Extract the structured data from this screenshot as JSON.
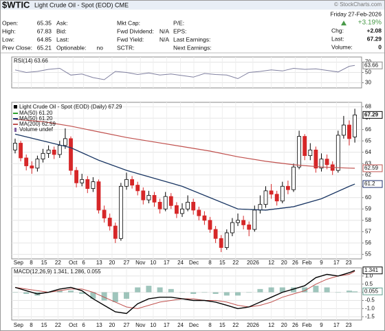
{
  "header": {
    "symbol": "$WTIC",
    "name": "Light Crude Oil - Spot (EOD) CME",
    "logo": "© StockCharts.com",
    "date": "Friday 27-Feb-2026",
    "change_pct": "+3.19%",
    "columns": [
      [
        {
          "label": "Open:",
          "value": 65.35
        },
        {
          "label": "High:",
          "value": 67.83
        },
        {
          "label": "Low:",
          "value": 64.85
        },
        {
          "label": "Prev Close:",
          "value": 65.21
        }
      ],
      [
        {
          "label": "Ask:"
        },
        {
          "label": "Bid:"
        },
        {
          "label": "Last:"
        },
        {
          "label": "Optionable:",
          "value": "no"
        }
      ],
      [
        {
          "label": "Mkt Cap:"
        },
        {
          "label": "Fwd Dividend:",
          "value": "N/A"
        },
        {
          "label": "Fwd Yield:",
          "value": "N/A"
        },
        {
          "label": "SCTR:"
        }
      ],
      [
        {
          "label": "P/E:"
        },
        {
          "label": "EPS:"
        },
        {
          "label": "Last Earnings:"
        },
        {
          "label": "Next Earnings:"
        }
      ]
    ],
    "right": [
      {
        "label": "Chg:",
        "value": "+2.08"
      },
      {
        "label": "Last:",
        "value": 67.29
      },
      {
        "label": "Volume:",
        "value": 0
      }
    ]
  },
  "chart_data": [
    {
      "type": "line",
      "title": "RSI(14) 63.66",
      "color": "#7f7f9f",
      "ylim": [
        20,
        80
      ],
      "yticks": [
        70,
        50,
        30
      ],
      "x": [
        0,
        2,
        4,
        6,
        8,
        10,
        12,
        14,
        16,
        18,
        20,
        22,
        24,
        26,
        28,
        30,
        32,
        34,
        36,
        38,
        40,
        42,
        44,
        46,
        48,
        50,
        52,
        54,
        56,
        58,
        60,
        61
      ],
      "values": [
        55,
        50,
        52,
        56,
        58,
        45,
        47,
        40,
        36,
        52,
        50,
        46,
        49,
        45,
        47,
        44,
        41,
        48,
        46,
        45,
        38,
        50,
        52,
        55,
        53,
        58,
        56,
        57,
        54,
        51,
        62,
        63.66
      ]
    },
    {
      "type": "candlestick",
      "title": "Light Crude Oil - Spot (EOD) (Daily) 67.29",
      "volume_label": "Volume undef",
      "last_value": 67.29,
      "ylim": [
        54.6,
        68.4
      ],
      "yticks": [
        55,
        56,
        57,
        58,
        59,
        60,
        61,
        62,
        63,
        64,
        65,
        66,
        67,
        68
      ],
      "xticks": [
        {
          "value": 0.6,
          "label": "Sep"
        },
        {
          "value": 2.9,
          "label": "8"
        },
        {
          "value": 5.2,
          "label": "15"
        },
        {
          "value": 7.7,
          "label": "22"
        },
        {
          "value": 10.4,
          "label": "Oct"
        },
        {
          "value": 12.3,
          "label": "6"
        },
        {
          "value": 15.1,
          "label": "13"
        },
        {
          "value": 17.4,
          "label": "20"
        },
        {
          "value": 20,
          "label": "27"
        },
        {
          "value": 22.5,
          "label": "Nov"
        },
        {
          "value": 24.8,
          "label": "10"
        },
        {
          "value": 27.2,
          "label": "17"
        },
        {
          "value": 29.7,
          "label": "24"
        },
        {
          "value": 32.1,
          "label": "Dec"
        },
        {
          "value": 35,
          "label": "8"
        },
        {
          "value": 37.2,
          "label": "15"
        },
        {
          "value": 39.6,
          "label": "22"
        },
        {
          "value": 42.7,
          "label": "2026"
        },
        {
          "value": 46,
          "label": "12"
        },
        {
          "value": 48.3,
          "label": "20"
        },
        {
          "value": 50.3,
          "label": "26"
        },
        {
          "value": 52.4,
          "label": "Feb"
        },
        {
          "value": 55,
          "label": "9"
        },
        {
          "value": 57.7,
          "label": "17"
        },
        {
          "value": 59.9,
          "label": "23"
        }
      ],
      "candles": [
        [
          64.2,
          65.2,
          63.9,
          64.8
        ],
        [
          64.8,
          65.0,
          63.2,
          63.5
        ],
        [
          63.5,
          63.8,
          62.4,
          62.8
        ],
        [
          62.8,
          63.2,
          62.1,
          62.6
        ],
        [
          62.6,
          63.7,
          62.3,
          63.4
        ],
        [
          63.4,
          64.3,
          63.1,
          63.9
        ],
        [
          63.9,
          64.6,
          63.5,
          64.2
        ],
        [
          64.2,
          64.5,
          63.4,
          63.8
        ],
        [
          63.8,
          65.0,
          63.5,
          64.6
        ],
        [
          64.6,
          66.1,
          64.3,
          65.2
        ],
        [
          65.2,
          65.4,
          62.0,
          62.4
        ],
        [
          62.4,
          62.7,
          60.9,
          61.3
        ],
        [
          61.3,
          62.1,
          61.0,
          61.6
        ],
        [
          61.6,
          61.9,
          60.4,
          60.8
        ],
        [
          60.8,
          61.8,
          60.5,
          61.4
        ],
        [
          61.4,
          61.6,
          58.6,
          58.9
        ],
        [
          58.9,
          59.3,
          57.8,
          58.2
        ],
        [
          58.2,
          58.6,
          57.1,
          57.5
        ],
        [
          57.5,
          57.8,
          56.0,
          56.4
        ],
        [
          56.4,
          61.3,
          56.2,
          61.0
        ],
        [
          61.0,
          62.2,
          60.7,
          61.6
        ],
        [
          61.6,
          61.9,
          60.8,
          61.1
        ],
        [
          61.1,
          61.4,
          60.2,
          60.6
        ],
        [
          60.6,
          60.9,
          59.4,
          59.8
        ],
        [
          59.8,
          60.6,
          59.5,
          60.2
        ],
        [
          60.2,
          60.5,
          59.2,
          59.6
        ],
        [
          59.6,
          59.9,
          58.6,
          59.0
        ],
        [
          59.0,
          60.5,
          58.8,
          60.1
        ],
        [
          60.1,
          60.4,
          59.0,
          59.3
        ],
        [
          59.3,
          59.6,
          58.2,
          58.6
        ],
        [
          58.6,
          59.5,
          58.3,
          59.0
        ],
        [
          59.0,
          60.2,
          58.8,
          59.6
        ],
        [
          59.6,
          59.9,
          58.5,
          58.9
        ],
        [
          58.9,
          59.2,
          58.0,
          58.4
        ],
        [
          58.4,
          58.8,
          57.6,
          58.0
        ],
        [
          58.0,
          58.3,
          56.9,
          57.2
        ],
        [
          57.2,
          57.5,
          56.0,
          56.4
        ],
        [
          56.4,
          56.7,
          55.2,
          55.6
        ],
        [
          55.6,
          57.2,
          55.4,
          56.9
        ],
        [
          56.9,
          58.2,
          56.6,
          57.8
        ],
        [
          57.8,
          58.6,
          57.5,
          58.0
        ],
        [
          58.0,
          58.4,
          57.2,
          57.6
        ],
        [
          57.6,
          57.9,
          56.6,
          57.2
        ],
        [
          57.2,
          59.3,
          57.0,
          58.9
        ],
        [
          58.9,
          60.2,
          58.6,
          59.4
        ],
        [
          59.4,
          61.0,
          59.1,
          60.6
        ],
        [
          60.6,
          61.2,
          59.9,
          60.3
        ],
        [
          60.3,
          60.6,
          59.3,
          59.7
        ],
        [
          59.7,
          61.4,
          59.5,
          61.0
        ],
        [
          61.0,
          61.5,
          60.3,
          60.7
        ],
        [
          60.7,
          63.0,
          60.5,
          62.7
        ],
        [
          62.7,
          65.9,
          62.5,
          65.4
        ],
        [
          65.4,
          65.6,
          63.3,
          63.7
        ],
        [
          63.7,
          64.8,
          63.3,
          64.2
        ],
        [
          64.2,
          64.5,
          62.2,
          62.6
        ],
        [
          62.6,
          63.9,
          62.3,
          63.4
        ],
        [
          63.4,
          63.8,
          62.5,
          62.9
        ],
        [
          62.9,
          63.2,
          62.0,
          62.4
        ],
        [
          62.4,
          65.9,
          62.2,
          65.5
        ],
        [
          65.5,
          67.2,
          65.2,
          66.4
        ],
        [
          66.4,
          66.8,
          64.6,
          65.2
        ],
        [
          65.35,
          67.83,
          64.85,
          67.29
        ]
      ],
      "series": [
        {
          "name": "MA(50) 61.20",
          "color": "#2ca02c",
          "last_value": 61.2,
          "x": [
            0,
            5,
            10,
            15,
            20,
            25,
            30,
            35,
            40,
            45,
            50,
            55,
            60,
            61
          ],
          "values": [
            65.6,
            65.0,
            64.4,
            63.3,
            62.4,
            61.7,
            61.0,
            60.0,
            59.0,
            58.9,
            59.2,
            59.9,
            61.0,
            61.2
          ]
        },
        {
          "name": "MA(50) 61.20",
          "color": "#1f2f6f",
          "last_value": 61.2,
          "x": [
            0,
            5,
            10,
            15,
            20,
            25,
            30,
            35,
            40,
            45,
            50,
            55,
            60,
            61
          ],
          "values": [
            65.6,
            65.0,
            64.4,
            63.3,
            62.4,
            61.7,
            61.0,
            60.0,
            59.0,
            58.9,
            59.2,
            59.9,
            61.0,
            61.2
          ]
        },
        {
          "name": "MA(200) 62.59",
          "color": "#c0504d",
          "last_value": 62.59,
          "x": [
            0,
            5,
            10,
            15,
            20,
            25,
            30,
            35,
            40,
            45,
            50,
            55,
            60,
            61
          ],
          "values": [
            66.9,
            66.7,
            66.3,
            65.8,
            65.3,
            64.9,
            64.5,
            64.1,
            63.6,
            63.2,
            62.9,
            62.7,
            62.6,
            62.59
          ]
        }
      ]
    },
    {
      "type": "macd",
      "title": "MACD(12,26,9) 1.341, 1.286, 0.055",
      "ylim": [
        -1.7,
        1.5
      ],
      "yticks": [
        {
          "value": 1,
          "label": "1.0"
        },
        0.5,
        {
          "value": 0,
          "label": "0.0"
        },
        -0.5,
        {
          "value": -1,
          "label": "-1.0"
        },
        -1.5
      ],
      "x": [
        0,
        2,
        4,
        6,
        8,
        10,
        12,
        14,
        16,
        18,
        20,
        22,
        24,
        26,
        28,
        30,
        32,
        34,
        36,
        38,
        40,
        42,
        44,
        46,
        48,
        50,
        52,
        54,
        56,
        58,
        60,
        61
      ],
      "macd": [
        0.3,
        0.1,
        -0.1,
        0.0,
        0.2,
        0.3,
        0.1,
        -0.4,
        -0.8,
        -1.2,
        -1.3,
        -0.7,
        -0.4,
        -0.3,
        -0.3,
        -0.4,
        -0.5,
        -0.5,
        -0.6,
        -0.8,
        -1.0,
        -0.9,
        -0.6,
        -0.3,
        0.0,
        0.2,
        0.4,
        0.9,
        1.1,
        1.0,
        1.2,
        1.341
      ],
      "signal": [
        0.3,
        0.2,
        0.1,
        0.0,
        0.1,
        0.2,
        0.2,
        0.0,
        -0.3,
        -0.6,
        -0.9,
        -1.0,
        -0.8,
        -0.6,
        -0.5,
        -0.4,
        -0.4,
        -0.5,
        -0.5,
        -0.6,
        -0.8,
        -0.9,
        -0.8,
        -0.6,
        -0.3,
        -0.1,
        0.1,
        0.5,
        0.8,
        1.0,
        1.1,
        1.286
      ],
      "histogram": [
        0,
        -0.1,
        -0.2,
        0,
        0.1,
        0.1,
        -0.1,
        -0.4,
        -0.5,
        -0.6,
        -0.4,
        0.3,
        0.4,
        0.3,
        0.2,
        0,
        -0.1,
        0,
        -0.1,
        -0.2,
        -0.2,
        0,
        0.2,
        0.3,
        0.3,
        0.3,
        0.3,
        0.4,
        0.3,
        0,
        0.1,
        0.055
      ],
      "colors": {
        "macd": "#000000",
        "signal": "#c0504d",
        "histogram": "#5f9f8f"
      }
    }
  ]
}
